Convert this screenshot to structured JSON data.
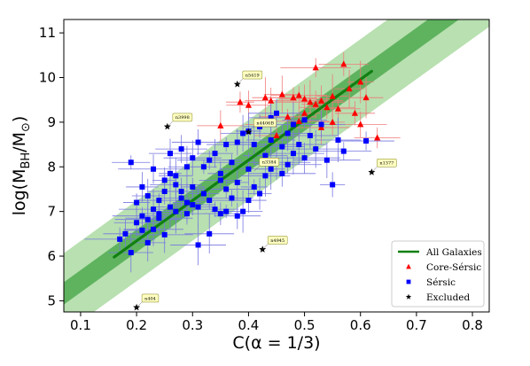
{
  "chart_data": {
    "type": "scatter",
    "xlabel": "C(α = 1/3)",
    "ylabel": "log(M_BH/M_⊙)",
    "xlim": [
      0.07,
      0.83
    ],
    "ylim": [
      4.75,
      11.3
    ],
    "xticks": [
      "0.1",
      "0.2",
      "0.3",
      "0.4",
      "0.5",
      "0.6",
      "0.7",
      "0.8"
    ],
    "yticks": [
      "5",
      "6",
      "7",
      "8",
      "9",
      "10",
      "11"
    ],
    "grid": false,
    "legend_position": "lower-right",
    "colors": {
      "fit_line": "#118011",
      "band_inner": "#5fb35f",
      "band_outer": "#b8e0b0",
      "core_sersic": "#ff0000",
      "sersic": "#0000ff",
      "excluded": "#000000",
      "error_core": "#f07a7a",
      "error_sersic": "#7777e0",
      "annotation_box": "#ffffc0",
      "annotation_border": "#9a9a40"
    },
    "fit": {
      "name": "All Galaxies",
      "x": [
        0.16,
        0.62
      ],
      "y": [
        5.98,
        10.14
      ],
      "inner_halfwidth": 0.25,
      "outer_halfwidth": 0.9
    },
    "series": [
      {
        "name": "Core-Sérsic",
        "marker": "triangle",
        "points": [
          [
            0.35,
            8.92
          ],
          [
            0.385,
            9.45
          ],
          [
            0.4,
            9.38
          ],
          [
            0.43,
            9.55
          ],
          [
            0.44,
            9.48
          ],
          [
            0.46,
            9.62
          ],
          [
            0.47,
            9.12
          ],
          [
            0.48,
            9.55
          ],
          [
            0.49,
            9.6
          ],
          [
            0.5,
            9.52
          ],
          [
            0.5,
            9.2
          ],
          [
            0.51,
            9.45
          ],
          [
            0.52,
            9.4
          ],
          [
            0.52,
            10.22
          ],
          [
            0.53,
            9.48
          ],
          [
            0.54,
            9.33
          ],
          [
            0.55,
            9.58
          ],
          [
            0.56,
            9.3
          ],
          [
            0.57,
            10.3
          ],
          [
            0.58,
            9.75
          ],
          [
            0.59,
            9.2
          ],
          [
            0.6,
            9.9
          ],
          [
            0.61,
            9.55
          ],
          [
            0.63,
            8.65
          ],
          [
            0.6,
            8.95
          ],
          [
            0.49,
            9.02
          ],
          [
            0.42,
            8.95
          ],
          [
            0.45,
            8.7
          ],
          [
            0.55,
            9.0
          ],
          [
            0.53,
            8.88
          ]
        ]
      },
      {
        "name": "Sérsic",
        "marker": "square",
        "points": [
          [
            0.17,
            6.38
          ],
          [
            0.18,
            6.5
          ],
          [
            0.19,
            6.08
          ],
          [
            0.2,
            6.75
          ],
          [
            0.21,
            6.58
          ],
          [
            0.21,
            6.9
          ],
          [
            0.22,
            6.3
          ],
          [
            0.22,
            6.82
          ],
          [
            0.23,
            7.05
          ],
          [
            0.23,
            6.6
          ],
          [
            0.24,
            7.25
          ],
          [
            0.24,
            6.95
          ],
          [
            0.25,
            7.45
          ],
          [
            0.25,
            6.48
          ],
          [
            0.26,
            7.1
          ],
          [
            0.26,
            7.85
          ],
          [
            0.27,
            7.6
          ],
          [
            0.27,
            7.0
          ],
          [
            0.28,
            7.3
          ],
          [
            0.28,
            8.4
          ],
          [
            0.29,
            7.2
          ],
          [
            0.29,
            6.95
          ],
          [
            0.3,
            7.55
          ],
          [
            0.3,
            8.2
          ],
          [
            0.31,
            6.25
          ],
          [
            0.31,
            7.1
          ],
          [
            0.32,
            7.4
          ],
          [
            0.32,
            8.0
          ],
          [
            0.33,
            6.5
          ],
          [
            0.33,
            7.25
          ],
          [
            0.34,
            7.05
          ],
          [
            0.34,
            8.3
          ],
          [
            0.35,
            7.85
          ],
          [
            0.35,
            6.95
          ],
          [
            0.36,
            7.5
          ],
          [
            0.36,
            7.0
          ],
          [
            0.37,
            8.1
          ],
          [
            0.37,
            7.3
          ],
          [
            0.38,
            6.9
          ],
          [
            0.38,
            7.65
          ],
          [
            0.39,
            8.75
          ],
          [
            0.39,
            7.0
          ],
          [
            0.4,
            7.95
          ],
          [
            0.4,
            7.25
          ],
          [
            0.41,
            8.5
          ],
          [
            0.41,
            7.55
          ],
          [
            0.42,
            8.9
          ],
          [
            0.42,
            7.4
          ],
          [
            0.43,
            8.25
          ],
          [
            0.43,
            7.8
          ],
          [
            0.44,
            8.6
          ],
          [
            0.44,
            7.95
          ],
          [
            0.45,
            9.2
          ],
          [
            0.45,
            8.1
          ],
          [
            0.46,
            8.45
          ],
          [
            0.46,
            7.85
          ],
          [
            0.47,
            8.75
          ],
          [
            0.48,
            8.3
          ],
          [
            0.48,
            8.95
          ],
          [
            0.49,
            8.5
          ],
          [
            0.5,
            9.05
          ],
          [
            0.5,
            8.2
          ],
          [
            0.51,
            8.7
          ],
          [
            0.52,
            8.4
          ],
          [
            0.53,
            8.95
          ],
          [
            0.54,
            8.15
          ],
          [
            0.55,
            7.6
          ],
          [
            0.56,
            8.6
          ],
          [
            0.57,
            8.35
          ],
          [
            0.61,
            8.58
          ],
          [
            0.21,
            7.55
          ],
          [
            0.19,
            8.1
          ],
          [
            0.23,
            7.95
          ],
          [
            0.25,
            7.7
          ],
          [
            0.22,
            7.35
          ],
          [
            0.27,
            7.8
          ],
          [
            0.29,
            8.0
          ],
          [
            0.31,
            8.55
          ],
          [
            0.33,
            8.15
          ],
          [
            0.38,
            8.55
          ],
          [
            0.24,
            6.85
          ],
          [
            0.2,
            7.2
          ],
          [
            0.3,
            7.15
          ],
          [
            0.26,
            8.3
          ],
          [
            0.36,
            8.5
          ],
          [
            0.4,
            8.8
          ],
          [
            0.44,
            9.1
          ],
          [
            0.47,
            8.05
          ],
          [
            0.35,
            7.7
          ],
          [
            0.28,
            7.45
          ]
        ]
      },
      {
        "name": "Excluded",
        "marker": "star",
        "points": [
          [
            0.38,
            9.85
          ],
          [
            0.255,
            8.9
          ],
          [
            0.4,
            8.78
          ],
          [
            0.62,
            7.88
          ],
          [
            0.425,
            6.15
          ],
          [
            0.2,
            4.85
          ]
        ]
      }
    ],
    "annotations": [
      {
        "label": "n5419",
        "x": 0.38,
        "y": 9.85
      },
      {
        "label": "n3998",
        "x": 0.255,
        "y": 8.9
      },
      {
        "label": "n4406B",
        "x": 0.4,
        "y": 8.78
      },
      {
        "label": "n1377",
        "x": 0.62,
        "y": 7.88
      },
      {
        "label": "n4945",
        "x": 0.425,
        "y": 6.15
      },
      {
        "label": "n404",
        "x": 0.2,
        "y": 4.85
      },
      {
        "label": "n3384",
        "x": 0.41,
        "y": 7.9
      }
    ],
    "legend": {
      "entries": [
        "All Galaxies",
        "Core-Sérsic",
        "Sérsic",
        "Excluded"
      ]
    }
  }
}
